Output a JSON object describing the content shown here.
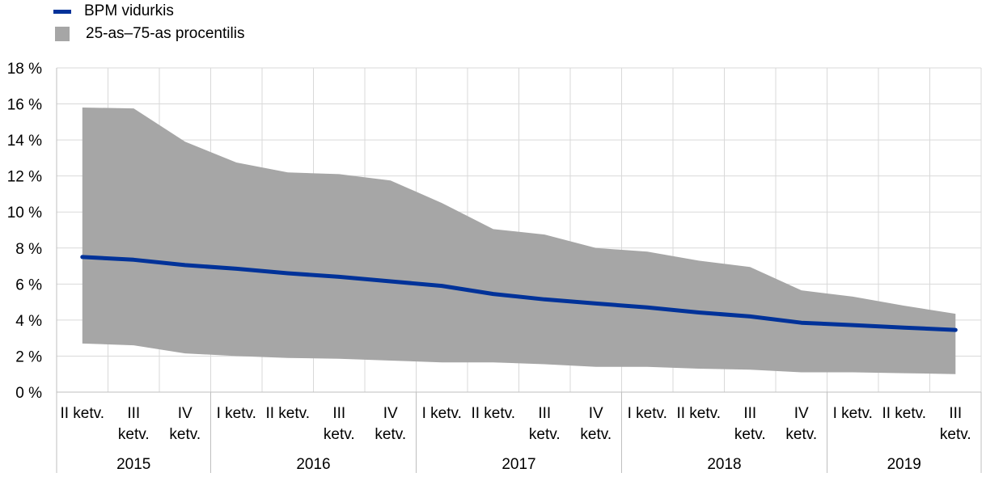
{
  "colors": {
    "line": "#003299",
    "band": "#a6a6a6",
    "grid": "#d9d9d9",
    "axis": "#bfbfbf"
  },
  "legend": {
    "line_label": "BPM vidurkis",
    "band_label": "25-as–75-as procentilis"
  },
  "chart_data": {
    "type": "line",
    "y_tick_labels": [
      "0 %",
      "2 %",
      "4 %",
      "6 %",
      "8 %",
      "10 %",
      "12 %",
      "14 %",
      "16 %",
      "18 %"
    ],
    "ylim": [
      0,
      18
    ],
    "grid": true,
    "legend_position": "top-left",
    "x_labels": [
      [
        "II ketv."
      ],
      [
        "III",
        "ketv."
      ],
      [
        "IV",
        "ketv."
      ],
      [
        "I ketv."
      ],
      [
        "II ketv."
      ],
      [
        "III",
        "ketv."
      ],
      [
        "IV",
        "ketv."
      ],
      [
        "I ketv."
      ],
      [
        "II ketv."
      ],
      [
        "III",
        "ketv."
      ],
      [
        "IV",
        "ketv."
      ],
      [
        "I ketv."
      ],
      [
        "II ketv."
      ],
      [
        "III",
        "ketv."
      ],
      [
        "IV",
        "ketv."
      ],
      [
        "I ketv."
      ],
      [
        "II ketv."
      ],
      [
        "III",
        "ketv."
      ]
    ],
    "years": [
      {
        "label": "2015",
        "span": 3
      },
      {
        "label": "2016",
        "span": 4
      },
      {
        "label": "2017",
        "span": 4
      },
      {
        "label": "2018",
        "span": 4
      },
      {
        "label": "2019",
        "span": 3
      }
    ],
    "x": [
      0,
      1,
      2,
      3,
      4,
      5,
      6,
      7,
      8,
      9,
      10,
      11,
      12,
      13,
      14,
      15,
      16,
      17
    ],
    "series": [
      {
        "name": "BPM vidurkis",
        "kind": "line",
        "values": [
          7.5,
          7.35,
          7.05,
          6.85,
          6.6,
          6.4,
          6.15,
          5.9,
          5.45,
          5.15,
          4.92,
          4.7,
          4.42,
          4.2,
          3.85,
          3.72,
          3.58,
          3.45
        ]
      },
      {
        "name": "25-as–75-as procentilis",
        "kind": "band",
        "upper": [
          15.8,
          15.75,
          13.9,
          12.75,
          12.2,
          12.1,
          11.75,
          10.5,
          9.05,
          8.75,
          8.0,
          7.8,
          7.3,
          6.95,
          5.65,
          5.3,
          4.8,
          4.35
        ],
        "lower": [
          2.7,
          2.6,
          2.15,
          2.0,
          1.9,
          1.85,
          1.75,
          1.65,
          1.65,
          1.55,
          1.4,
          1.4,
          1.3,
          1.25,
          1.1,
          1.1,
          1.05,
          1.0
        ]
      }
    ]
  }
}
